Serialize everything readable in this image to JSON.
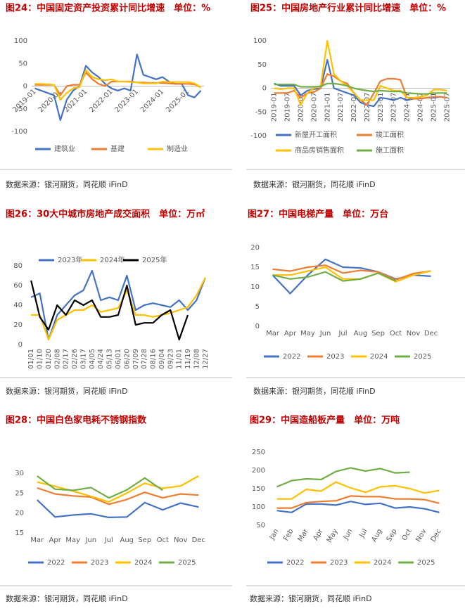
{
  "chart_data": [
    {
      "type": "line",
      "title": "图24：中国固定资产投资累计同比增速　单位：%",
      "source": "数据来源：银河期货，同花顺 iFinD",
      "legend": "bottom",
      "categories": [
        "2019-01",
        null,
        null,
        null,
        "2020-01",
        null,
        null,
        null,
        "2021-01",
        null,
        null,
        null,
        "2022-01",
        null,
        null,
        null,
        "2023-01",
        null,
        null,
        null,
        "2024-01",
        null,
        null,
        null,
        "2025-01",
        null,
        null
      ],
      "ylim": [
        -100,
        100
      ],
      "yticks": [
        -100,
        -50,
        0,
        50,
        100
      ],
      "series": [
        {
          "name": "建筑业",
          "color": "#4472c4",
          "values": [
            -5,
            -10,
            -15,
            -20,
            -75,
            -30,
            -10,
            0,
            45,
            30,
            20,
            5,
            -5,
            -10,
            -5,
            -10,
            70,
            25,
            20,
            15,
            20,
            10,
            5,
            5,
            -20,
            -25,
            -10
          ]
        },
        {
          "name": "基建",
          "color": "#ed7d31",
          "values": [
            3,
            3,
            3,
            3,
            -20,
            0,
            3,
            3,
            30,
            15,
            5,
            0,
            10,
            10,
            10,
            10,
            8,
            8,
            7,
            7,
            7,
            6,
            5,
            5,
            5,
            4,
            -3
          ]
        },
        {
          "name": "制造业",
          "color": "#ffc000",
          "values": [
            5,
            5,
            4,
            3,
            -30,
            -15,
            -5,
            -2,
            35,
            20,
            15,
            13,
            15,
            10,
            10,
            9,
            8,
            6,
            6,
            6,
            10,
            9,
            9,
            9,
            9,
            6,
            -3
          ]
        }
      ]
    },
    {
      "type": "line",
      "title": "图25：中国房地产行业累计同比增速　单位：%",
      "source": "数据来源：银河期货，同花顺 iFinD",
      "legend": "bottom",
      "categories": [
        "2019-01",
        null,
        "2019-07",
        null,
        "2020-01",
        null,
        "2020-07",
        null,
        "2021-01",
        null,
        "2021-07",
        null,
        "2022-01",
        null,
        "2022-07",
        null,
        "2023-01",
        null,
        "2023-07",
        null,
        "2024-01",
        null,
        "2024-07",
        null,
        "2025-01",
        null,
        "2025-07"
      ],
      "ylim": [
        -100,
        100
      ],
      "yticks": [
        -100,
        -50,
        0,
        50,
        100
      ],
      "series": [
        {
          "name": "新屋开工面积",
          "color": "#4472c4",
          "values": [
            10,
            5,
            5,
            5,
            -15,
            -5,
            -2,
            0,
            60,
            0,
            -5,
            -10,
            -15,
            -30,
            -35,
            -38,
            -20,
            -22,
            -25,
            -20,
            -25,
            -22,
            -22,
            -20,
            -20,
            -18,
            -20
          ]
        },
        {
          "name": "竣工面积",
          "color": "#ed7d31",
          "values": [
            -10,
            -10,
            -10,
            -5,
            -20,
            -10,
            -8,
            0,
            30,
            25,
            15,
            10,
            -10,
            -25,
            -35,
            -10,
            15,
            20,
            20,
            18,
            -20,
            -22,
            -22,
            -20,
            -18,
            -18,
            -20
          ]
        },
        {
          "name": "商品房销售面积",
          "color": "#ffc000",
          "values": [
            0,
            -2,
            0,
            0,
            -35,
            -10,
            0,
            5,
            100,
            30,
            15,
            5,
            -10,
            -25,
            -25,
            -25,
            5,
            0,
            -5,
            -5,
            -20,
            -20,
            -18,
            -15,
            -3,
            -3,
            -5
          ]
        },
        {
          "name": "施工面积",
          "color": "#70ad47",
          "values": [
            8,
            8,
            8,
            8,
            3,
            3,
            3,
            4,
            10,
            10,
            8,
            5,
            0,
            -3,
            -5,
            -7,
            -5,
            -6,
            -7,
            -7,
            -10,
            -11,
            -12,
            -12,
            -10,
            -10,
            -10
          ]
        }
      ]
    },
    {
      "type": "line",
      "title": "图26：30大中城市房地产成交面积　单位：万㎡",
      "source": "数据来源：银河期货，同花顺 iFinD",
      "legend": "top",
      "categories": [
        "01/01",
        "01/10",
        "01/20",
        "02/08",
        "02/17",
        "02/26",
        "03/17",
        "04/05",
        "04/24",
        "05/13",
        "06/01",
        "06/20",
        "07/09",
        "07/28",
        "08/16",
        "09/04",
        "09/23",
        "11/01",
        "11/19",
        "12/08",
        "12/27"
      ],
      "ylim": [
        0,
        80
      ],
      "yticks": [
        0,
        20,
        40,
        60,
        80
      ],
      "series": [
        {
          "name": "2023年",
          "color": "#4472c4",
          "values": [
            48,
            52,
            5,
            30,
            40,
            50,
            55,
            75,
            45,
            48,
            45,
            70,
            35,
            40,
            42,
            40,
            38,
            45,
            35,
            45,
            68
          ]
        },
        {
          "name": "2024年",
          "color": "#ffc000",
          "values": [
            30,
            30,
            5,
            25,
            30,
            35,
            35,
            40,
            33,
            35,
            37,
            55,
            30,
            30,
            28,
            30,
            32,
            35,
            38,
            50,
            68
          ]
        },
        {
          "name": "2025年",
          "color": "#000000",
          "values": [
            65,
            28,
            15,
            40,
            30,
            45,
            40,
            45,
            28,
            28,
            30,
            60,
            20,
            22,
            22,
            30,
            35,
            5,
            30,
            null,
            null
          ]
        }
      ]
    },
    {
      "type": "line",
      "title": "图27：中国电梯产量　单位：万台",
      "source": "数据来源：银河期货，同花顺 iFinD",
      "legend": "bottom",
      "categories": [
        "Mar",
        "Apr",
        "May",
        "Jun",
        "Jul",
        "Aug",
        "Sep",
        "Oct",
        "Nov",
        "Dec"
      ],
      "ylim": [
        0,
        20
      ],
      "yticks": [
        0,
        5,
        10,
        15,
        20
      ],
      "series": [
        {
          "name": "2022",
          "color": "#4472c4",
          "values": [
            13,
            8.3,
            13,
            17,
            15,
            14.8,
            13.8,
            12,
            13,
            12.7
          ]
        },
        {
          "name": "2023",
          "color": "#ed7d31",
          "values": [
            14.5,
            14,
            15,
            15.5,
            13.5,
            14.2,
            13.8,
            11.8,
            13.4,
            14
          ]
        },
        {
          "name": "2024",
          "color": "#ffc000",
          "values": [
            13,
            13,
            14,
            15,
            12,
            12,
            13.5,
            11.3,
            13,
            14
          ]
        },
        {
          "name": "2025",
          "color": "#70ad47",
          "values": [
            13,
            12,
            12.5,
            13.8,
            11.5,
            12,
            13.5,
            11.5,
            null,
            null
          ]
        }
      ]
    },
    {
      "type": "line",
      "title": "图28：中国白色家电耗不锈钢指数",
      "source": "数据来源：银河期货，同花顺 iFinD",
      "legend": "bottom",
      "categories": [
        "Mar",
        "Apr",
        "May",
        "Jun",
        "Jul",
        "Aug",
        "Sep",
        "Oct",
        "Nov",
        "Dec"
      ],
      "ylim": [
        15,
        30
      ],
      "yticks": [
        15,
        20,
        25,
        30
      ],
      "series": [
        {
          "name": "2022",
          "color": "#4472c4",
          "values": [
            23.3,
            19,
            19.5,
            19.8,
            18.9,
            19,
            22.6,
            20.8,
            22.5,
            21.5
          ]
        },
        {
          "name": "2023",
          "color": "#ed7d31",
          "values": [
            26.3,
            24.8,
            24.3,
            24,
            22.2,
            23.4,
            25.2,
            23.8,
            24.8,
            24.5
          ]
        },
        {
          "name": "2024",
          "color": "#ffc000",
          "values": [
            27.8,
            26.7,
            25.5,
            24.2,
            22.8,
            25,
            27.5,
            26.2,
            26.8,
            29.3
          ]
        },
        {
          "name": "2025",
          "color": "#70ad47",
          "values": [
            29.3,
            26,
            25.7,
            26.4,
            23.8,
            25.8,
            28.8,
            25.7,
            null,
            null
          ]
        }
      ]
    },
    {
      "type": "line",
      "title": "图29：中国造船板产量　单位：万吨",
      "source": "数据来源：银河期货，同花顺 iFinD",
      "legend": "bottom",
      "categories": [
        "Jan",
        "Feb",
        "Mar",
        "Apr",
        "May",
        "Jun",
        "Jul",
        "Aug",
        "Sep",
        "Oct",
        "Nov",
        "Dec"
      ],
      "ylim": [
        50,
        250
      ],
      "yticks": [
        50,
        100,
        150,
        200,
        250
      ],
      "series": [
        {
          "name": "2022",
          "color": "#4472c4",
          "values": [
            90,
            85,
            108,
            108,
            105,
            115,
            107,
            110,
            97,
            100,
            95,
            85
          ]
        },
        {
          "name": "2023",
          "color": "#ed7d31",
          "values": [
            97,
            97,
            112,
            115,
            117,
            130,
            128,
            128,
            122,
            122,
            120,
            110
          ]
        },
        {
          "name": "2024",
          "color": "#ffc000",
          "values": [
            122,
            122,
            148,
            143,
            168,
            152,
            140,
            155,
            158,
            150,
            138,
            145
          ]
        },
        {
          "name": "2025",
          "color": "#70ad47",
          "values": [
            155,
            172,
            177,
            175,
            197,
            207,
            198,
            205,
            193,
            195,
            null,
            null
          ]
        }
      ]
    }
  ]
}
